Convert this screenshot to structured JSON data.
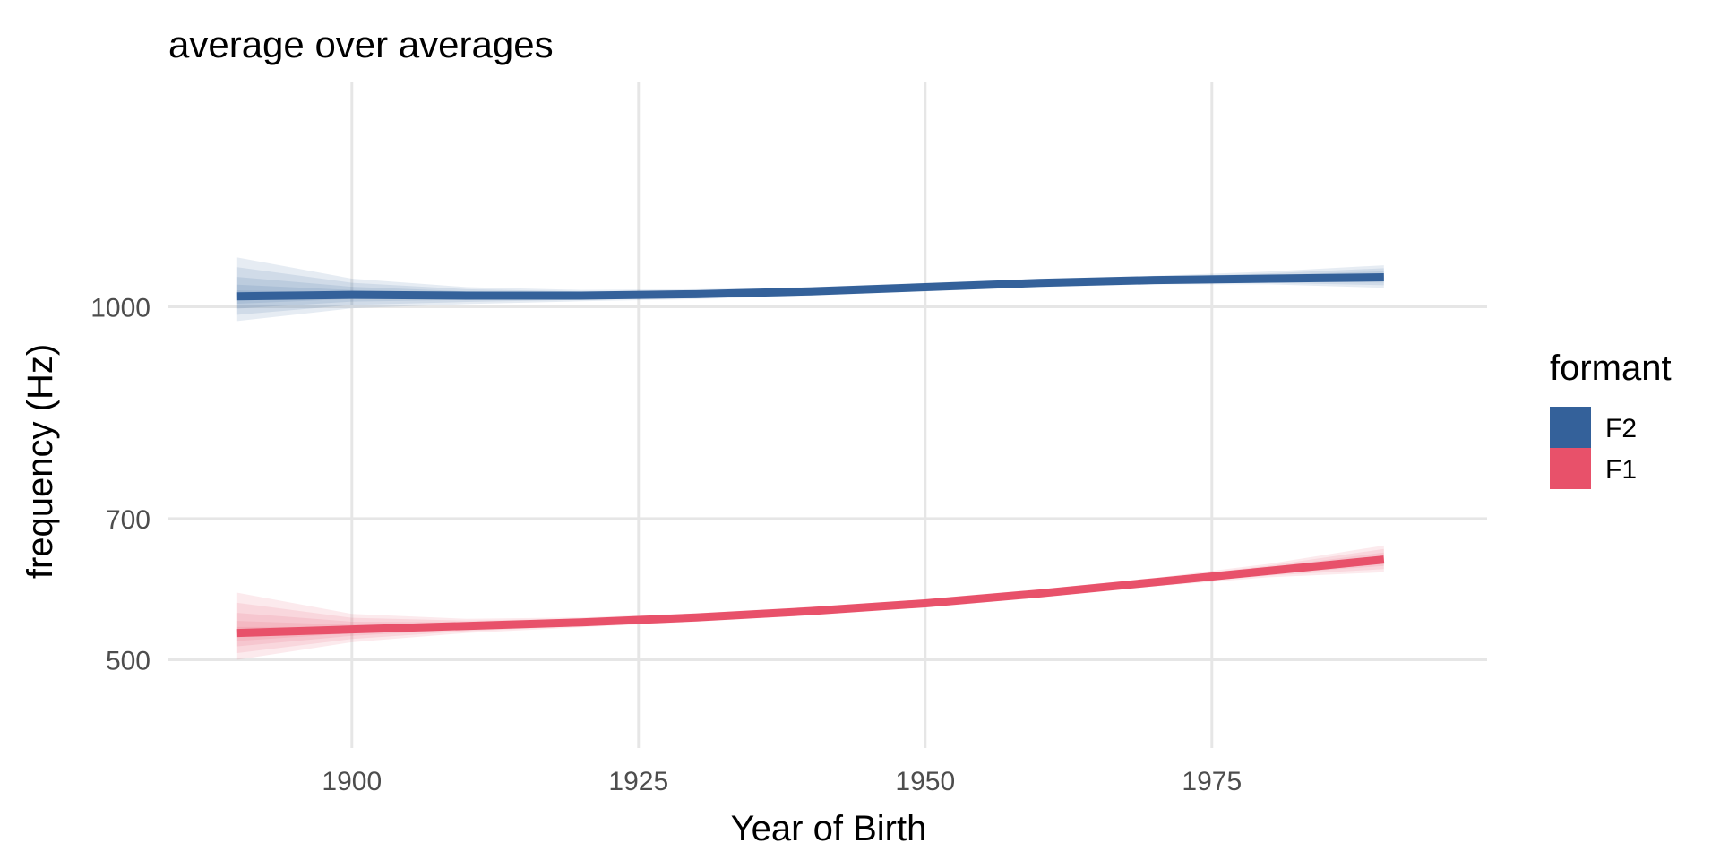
{
  "chart_data": {
    "type": "line",
    "title": "average over averages",
    "xlabel": "Year of Birth",
    "ylabel": "frequency (Hz)",
    "xlim": [
      1884,
      1999
    ],
    "ylim": [
      375,
      1318
    ],
    "x_ticks": [
      1900,
      1925,
      1950,
      1975
    ],
    "y_ticks": [
      500,
      700,
      1000
    ],
    "grid": true,
    "legend": {
      "title": "formant",
      "position": "right"
    },
    "x": [
      1890,
      1900,
      1910,
      1920,
      1930,
      1940,
      1950,
      1960,
      1970,
      1980,
      1990
    ],
    "series": [
      {
        "name": "F2",
        "color": "#34619a",
        "values": [
          1015,
          1017,
          1016,
          1016,
          1018,
          1022,
          1028,
          1034,
          1038,
          1040,
          1042
        ],
        "lower": [
          980,
          998,
          1004,
          1008,
          1011,
          1016,
          1022,
          1028,
          1032,
          1032,
          1027
        ],
        "upper": [
          1070,
          1040,
          1028,
          1024,
          1025,
          1028,
          1034,
          1040,
          1044,
          1050,
          1059
        ]
      },
      {
        "name": "F1",
        "color": "#e8516a",
        "values": [
          538,
          543,
          548,
          553,
          560,
          569,
          580,
          594,
          610,
          626,
          642
        ],
        "lower": [
          500,
          525,
          538,
          546,
          554,
          563,
          574,
          588,
          604,
          617,
          624
        ],
        "upper": [
          595,
          565,
          558,
          560,
          566,
          575,
          586,
          600,
          616,
          636,
          662
        ]
      }
    ]
  }
}
